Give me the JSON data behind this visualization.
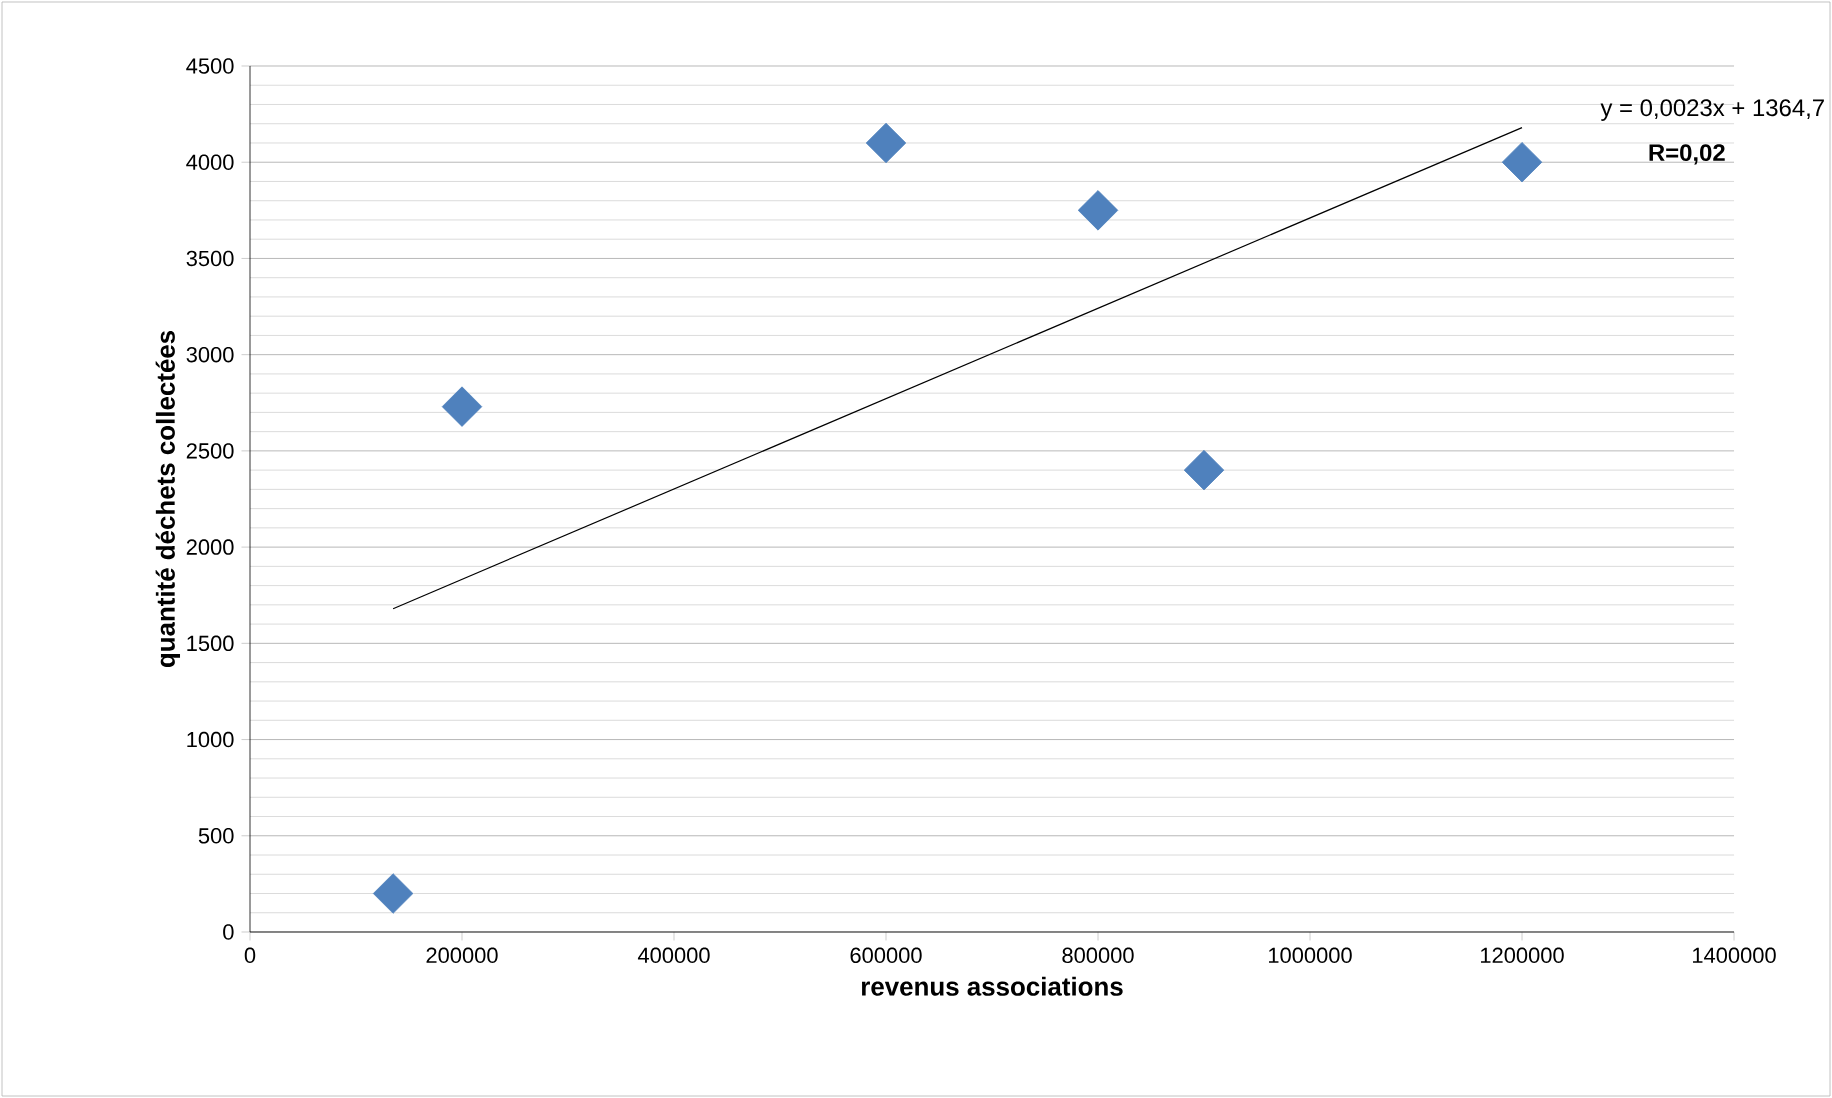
{
  "chart_data": {
    "type": "scatter",
    "xlabel": "revenus associations",
    "ylabel": "quantité déchets collectées",
    "xlim": [
      0,
      1400000
    ],
    "xticks": [
      0,
      200000,
      400000,
      600000,
      800000,
      1000000,
      1200000,
      1400000
    ],
    "ylim": [
      0,
      4500
    ],
    "yticks": [
      0,
      500,
      1000,
      1500,
      2000,
      2500,
      3000,
      3500,
      4000,
      4500
    ],
    "grid": "y",
    "marker": "diamond",
    "series": [
      {
        "color": "#4f81bd",
        "x": [
          135000,
          200000,
          600000,
          800000,
          900000,
          1200000
        ],
        "values": [
          200,
          2730,
          4100,
          3750,
          2400,
          4000
        ]
      },
      {
        "type": "line",
        "color": "#000000",
        "marker": "none",
        "x": [
          135000,
          1200000
        ],
        "values": [
          1680,
          4180
        ]
      }
    ],
    "annotations": [
      "y = 0,0023x + 1364,7",
      "**R=0,02**"
    ]
  }
}
